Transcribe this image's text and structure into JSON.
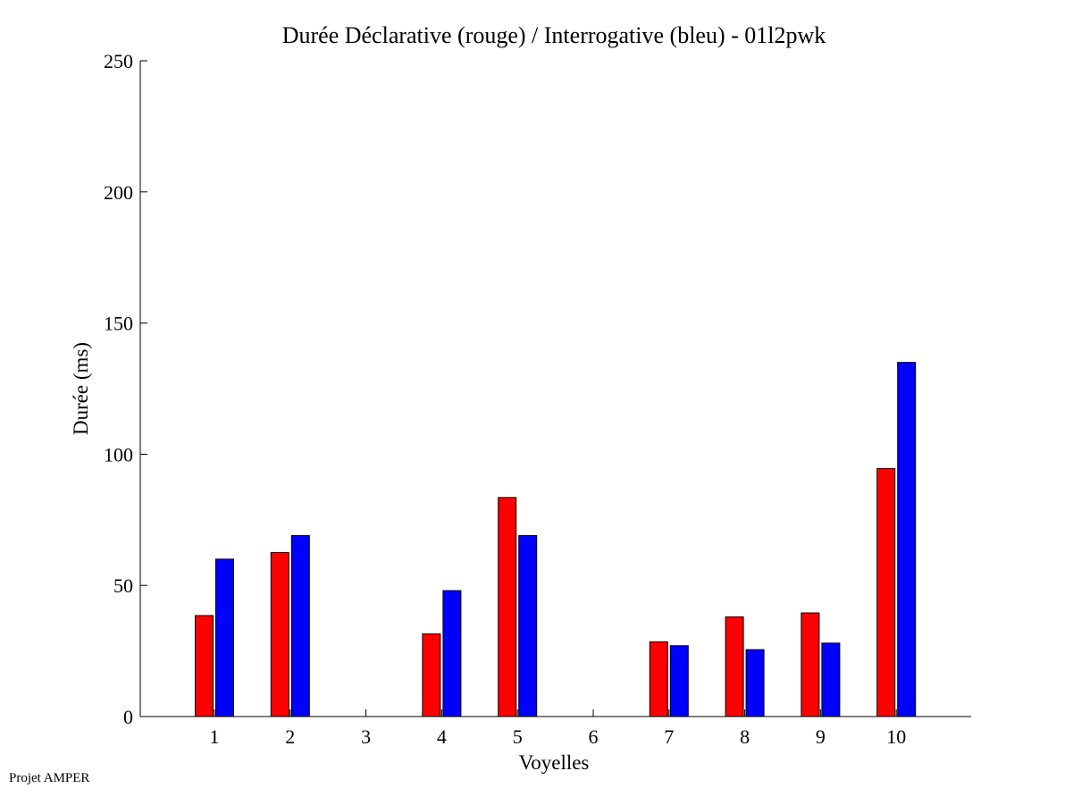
{
  "footer": "Projet AMPER",
  "chart_data": {
    "type": "bar",
    "title": "Durée Déclarative (rouge) / Interrogative (bleu) - 01l2pwk",
    "xlabel": "Voyelles",
    "ylabel": "Durée (ms)",
    "ylim": [
      0,
      250
    ],
    "yticks": [
      0,
      50,
      100,
      150,
      200,
      250
    ],
    "categories": [
      "1",
      "2",
      "3",
      "4",
      "5",
      "6",
      "7",
      "8",
      "9",
      "10"
    ],
    "series": [
      {
        "color": "#ff0000",
        "values": [
          38.5,
          62.5,
          0,
          31.5,
          83.5,
          0,
          28.5,
          38,
          39.5,
          94.5
        ]
      },
      {
        "color": "#0000ff",
        "values": [
          60,
          69,
          0,
          48,
          69,
          0,
          27,
          25.5,
          28,
          135
        ]
      }
    ],
    "grid": false,
    "legend": "none"
  }
}
